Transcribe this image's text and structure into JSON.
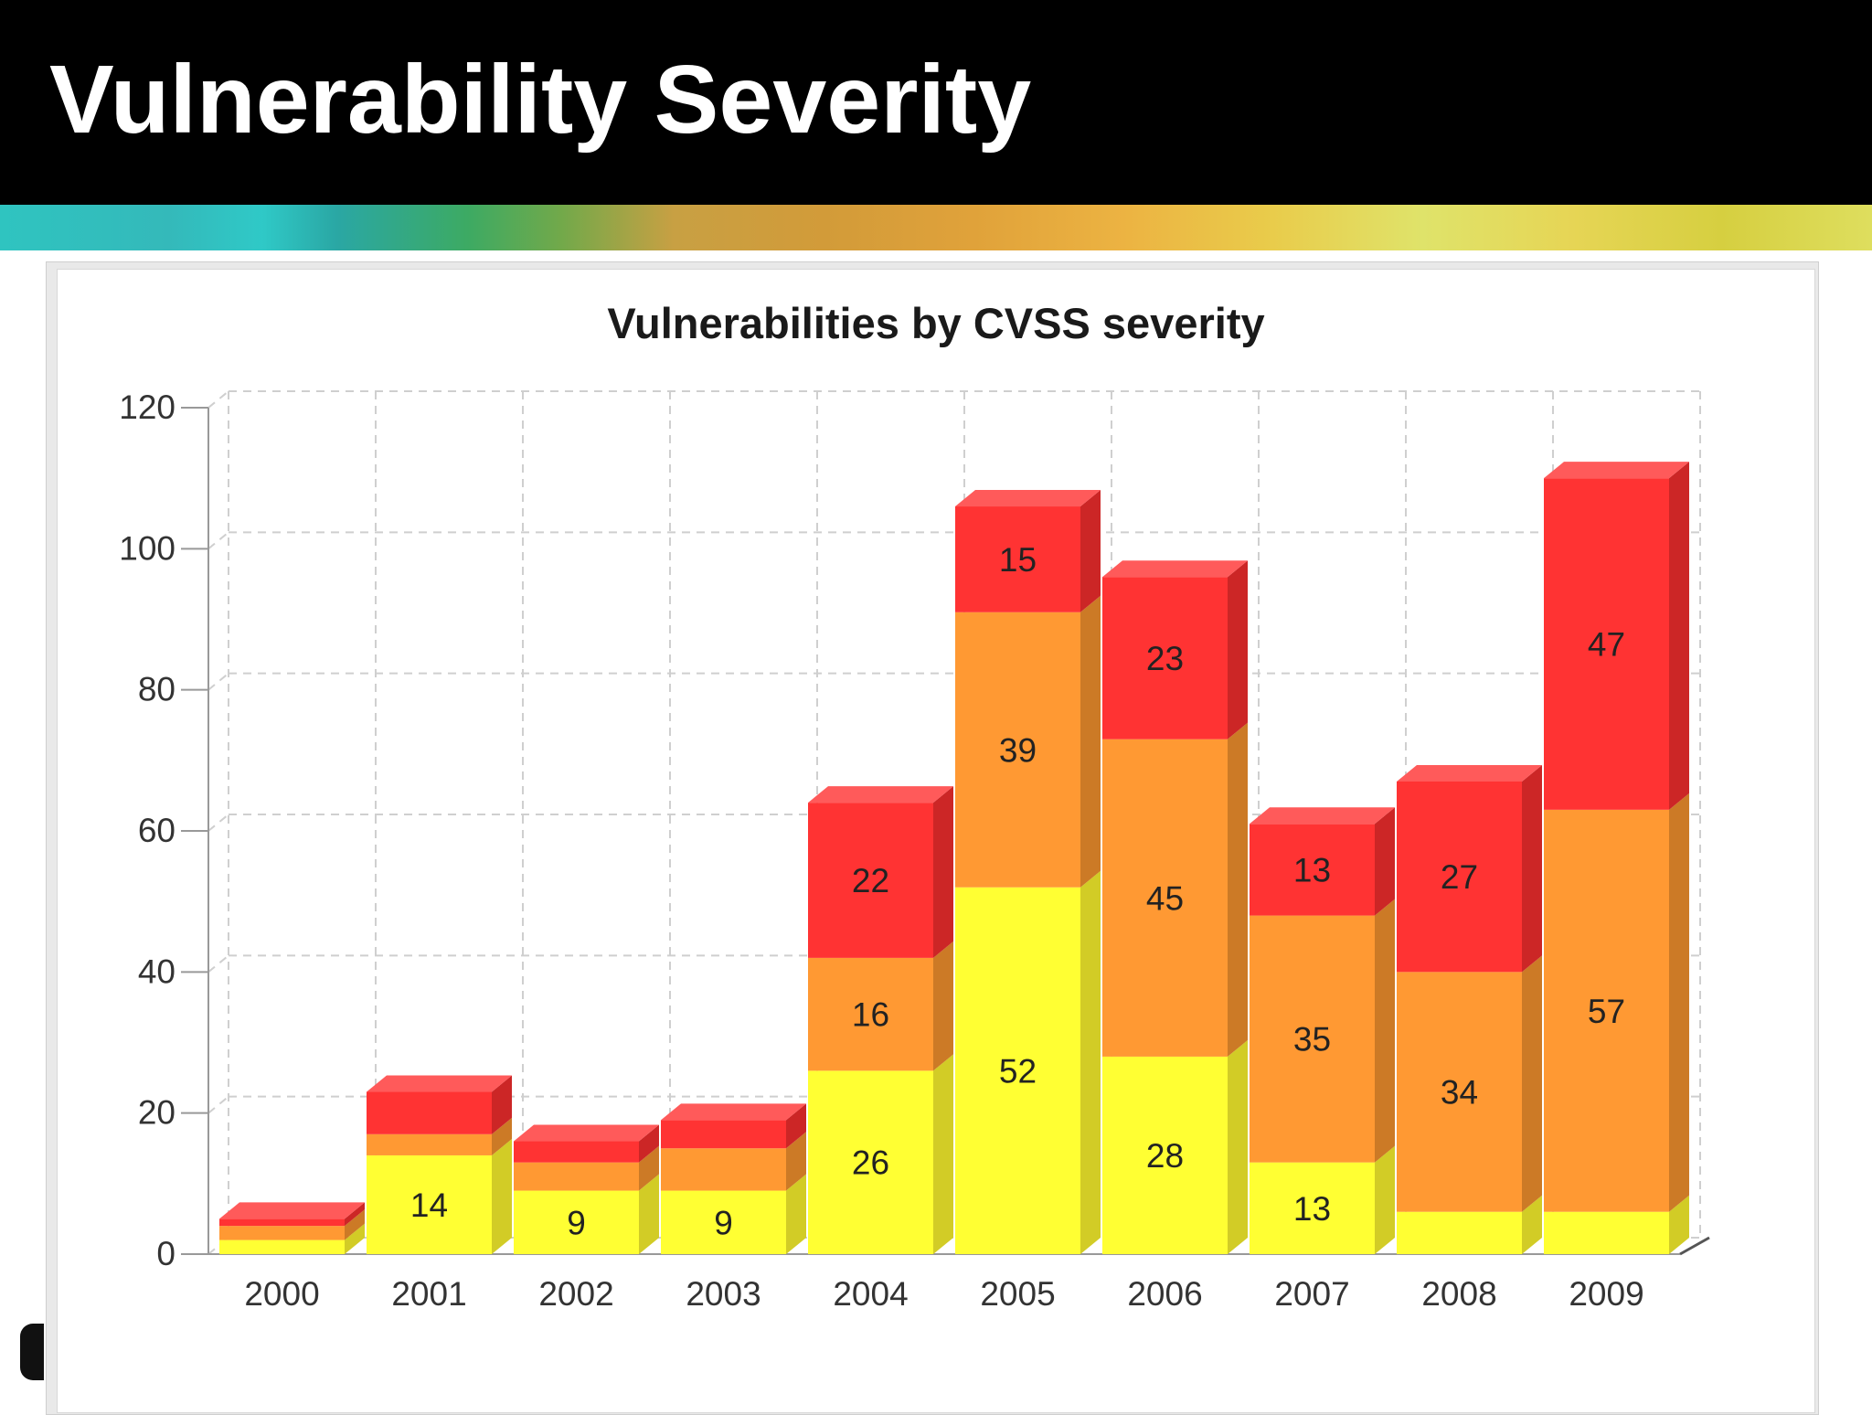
{
  "slide": {
    "title": "Vulnerability Severity"
  },
  "chart_data": {
    "type": "bar",
    "stacked": true,
    "three_d": true,
    "title": "Vulnerabilities by CVSS severity",
    "xlabel": "",
    "ylabel": "",
    "ylim": [
      0,
      120
    ],
    "yticks": [
      0,
      20,
      40,
      60,
      80,
      100,
      120
    ],
    "grid": true,
    "categories": [
      "2000",
      "2001",
      "2002",
      "2003",
      "2004",
      "2005",
      "2006",
      "2007",
      "2008",
      "2009"
    ],
    "series": [
      {
        "color": "#ffff33",
        "side": "#d2cc26",
        "values": [
          2,
          14,
          9,
          9,
          26,
          52,
          28,
          13,
          6,
          6
        ],
        "labels": [
          "",
          "14",
          "9",
          "9",
          "26",
          "52",
          "28",
          "13",
          "",
          ""
        ]
      },
      {
        "color": "#ff9933",
        "side": "#cc7a26",
        "values": [
          2,
          3,
          4,
          6,
          16,
          39,
          45,
          35,
          34,
          57
        ],
        "labels": [
          "",
          "",
          "",
          "",
          "16",
          "39",
          "45",
          "35",
          "34",
          "57"
        ]
      },
      {
        "color": "#ff3333",
        "side": "#cc2626",
        "values": [
          1,
          6,
          3,
          4,
          22,
          15,
          23,
          13,
          27,
          47
        ],
        "labels": [
          "",
          "",
          "",
          "",
          "22",
          "15",
          "23",
          "13",
          "27",
          "47"
        ]
      }
    ]
  }
}
